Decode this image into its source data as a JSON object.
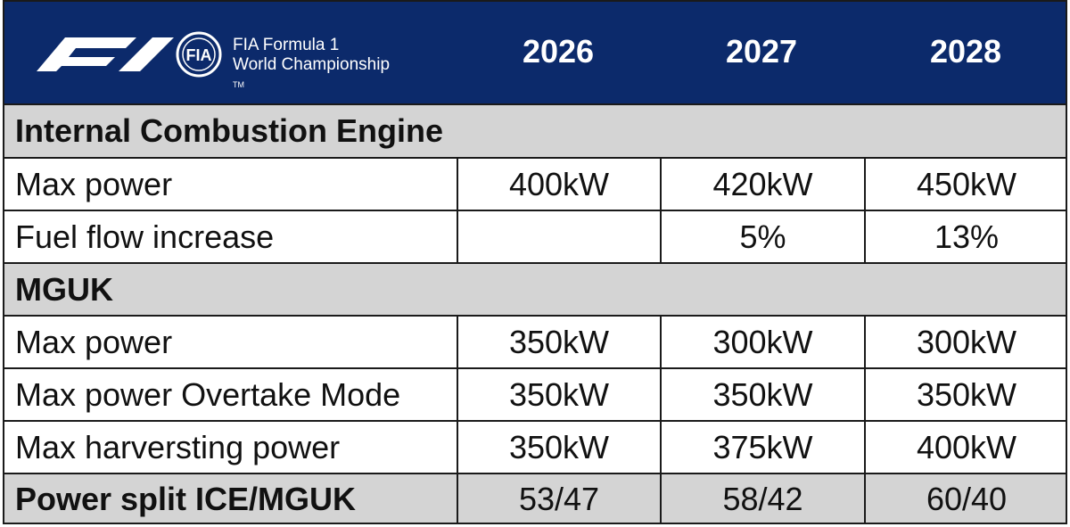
{
  "header": {
    "logo_line1": "FIA Formula 1",
    "logo_line2": "World Championship",
    "logo_tm": "TM",
    "fia_badge": "FIA",
    "years": [
      "2026",
      "2027",
      "2028"
    ]
  },
  "rows": [
    {
      "type": "section",
      "label": "Internal Combustion Engine"
    },
    {
      "type": "data",
      "label": "Max power",
      "values": [
        "400kW",
        "420kW",
        "450kW"
      ]
    },
    {
      "type": "data",
      "label": "Fuel flow increase",
      "values": [
        "",
        "5%",
        "13%"
      ]
    },
    {
      "type": "section",
      "label": "MGUK"
    },
    {
      "type": "data",
      "label": "Max power",
      "values": [
        "350kW",
        "300kW",
        "300kW"
      ]
    },
    {
      "type": "data",
      "label": "Max power Overtake Mode",
      "values": [
        "350kW",
        "350kW",
        "350kW"
      ]
    },
    {
      "type": "data",
      "label": "Max harversting power",
      "values": [
        "350kW",
        "375kW",
        "400kW"
      ]
    },
    {
      "type": "total",
      "label": "Power split ICE/MGUK",
      "values": [
        "53/47",
        "58/42",
        "60/40"
      ]
    }
  ],
  "colors": {
    "header_bg": "#0c2a6b",
    "section_bg": "#d4d4d4",
    "border": "#1a1a1a"
  }
}
